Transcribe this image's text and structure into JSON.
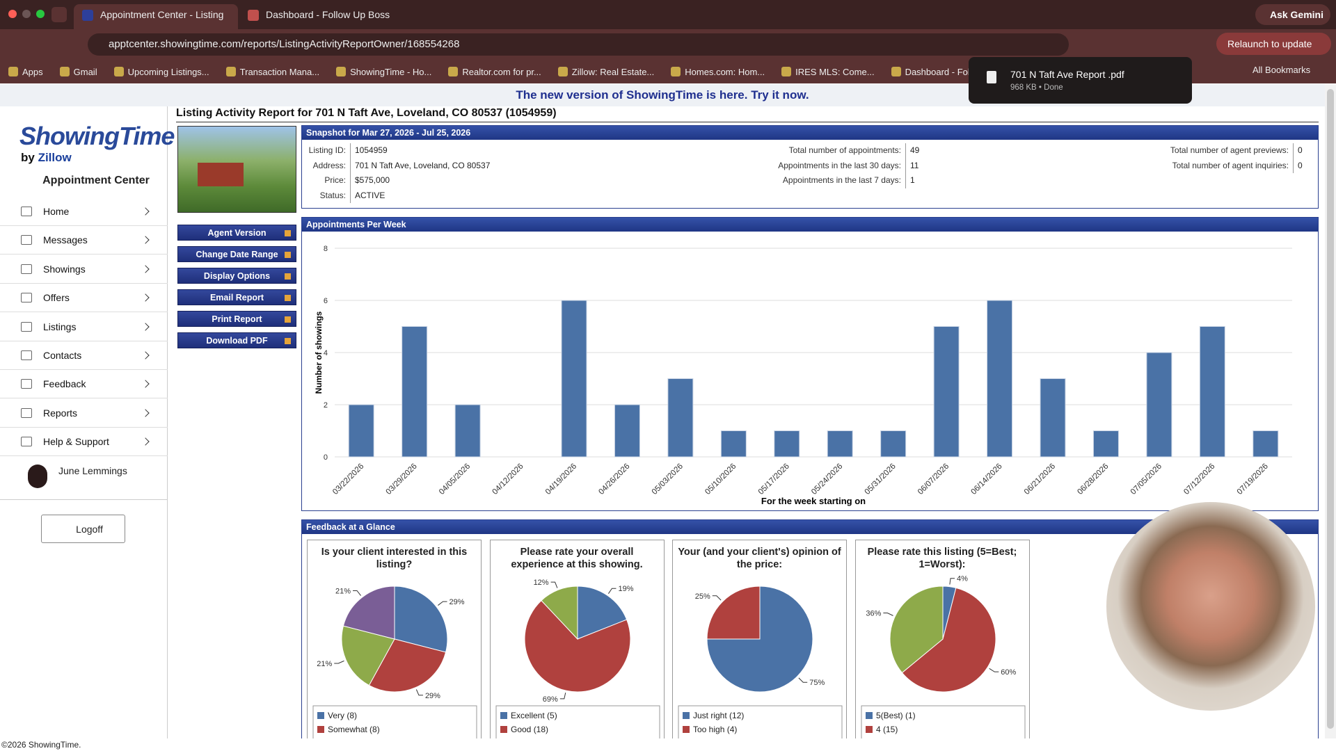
{
  "browser": {
    "tabs": [
      "Appointment Center - Listing",
      "Dashboard - Follow Up Boss"
    ],
    "url": "apptcenter.showingtime.com/reports/ListingActivityReportOwner/168554268",
    "ask": "Ask Gemini",
    "relaunch": "Relaunch to update",
    "bookmarks": [
      "Apps",
      "Gmail",
      "Upcoming Listings...",
      "Transaction Mana...",
      "ShowingTime - Ho...",
      "Realtor.com for pr...",
      "Zillow: Real Estate...",
      "Homes.com: Hom...",
      "IRES MLS: Come...",
      "Dashboard - Foll..."
    ],
    "all_bookmarks": "All Bookmarks",
    "download": {
      "file": "701 N Taft Ave Report .pdf",
      "status": "968 KB • Done"
    }
  },
  "banner": "The new version of ShowingTime is here. Try it now.",
  "sidebar": {
    "logo": "ShowingTime",
    "by": "by",
    "zillow": "Zillow",
    "app": "Appointment Center",
    "nav": [
      "Home",
      "Messages",
      "Showings",
      "Offers",
      "Listings",
      "Contacts",
      "Feedback",
      "Reports",
      "Help & Support"
    ],
    "user": "June Lemmings",
    "logoff": "Logoff"
  },
  "report": {
    "title": "Listing Activity Report for 701 N Taft Ave, Loveland, CO 80537 (1054959)",
    "buttons": [
      "Agent Version",
      "Change Date Range",
      "Display Options",
      "Email Report",
      "Print Report",
      "Download PDF"
    ],
    "snapshot": {
      "title": "Snapshot for Mar 27, 2026 - Jul 25, 2026",
      "columns": [
        [
          {
            "label": "Listing ID:",
            "value": "1054959"
          },
          {
            "label": "Address:",
            "value": "701 N Taft Ave, Loveland, CO 80537"
          },
          {
            "label": "Price:",
            "value": "$575,000"
          },
          {
            "label": "Status:",
            "value": "ACTIVE"
          }
        ],
        [
          {
            "label": "Total number of appointments:",
            "value": "49"
          },
          {
            "label": "Appointments in the last 30 days:",
            "value": "11"
          },
          {
            "label": "Appointments in the last 7 days:",
            "value": "1"
          }
        ],
        [
          {
            "label": "Total number of agent previews:",
            "value": "0"
          },
          {
            "label": "Total number of agent inquiries:",
            "value": "0"
          }
        ]
      ]
    },
    "feedback_title": "Feedback at a Glance"
  },
  "footer": "©2026 ShowingTime.",
  "chart_data": [
    {
      "type": "bar",
      "title": "Appointments Per Week",
      "y_label": "Number of showings",
      "x_label": "For the week starting on",
      "categories": [
        "03/22/2026",
        "03/29/2026",
        "04/05/2026",
        "04/12/2026",
        "04/19/2026",
        "04/26/2026",
        "05/03/2026",
        "05/10/2026",
        "05/17/2026",
        "05/24/2026",
        "05/31/2026",
        "06/07/2026",
        "06/14/2026",
        "06/21/2026",
        "06/28/2026",
        "07/05/2026",
        "07/12/2026",
        "07/19/2026"
      ],
      "values": [
        2,
        5,
        2,
        0,
        6,
        2,
        3,
        1,
        1,
        1,
        1,
        5,
        6,
        3,
        1,
        4,
        5,
        1
      ],
      "color": "#4a72a6",
      "ylim": [
        0,
        8
      ],
      "yticks": [
        0,
        2,
        4,
        6,
        8
      ],
      "grid": true
    },
    {
      "type": "pie",
      "title": "Is your client interested in this listing?",
      "categories": [
        "Very (8)",
        "Somewhat (8)",
        null,
        null
      ],
      "values": [
        29,
        29,
        21,
        21
      ],
      "value_labels": [
        "29%",
        "29%",
        "21%",
        "21%"
      ],
      "colors": [
        "#4a72a6",
        "#b0413e",
        "#8eaa4a",
        "#7a5e96"
      ]
    },
    {
      "type": "pie",
      "title": "Please rate your overall experience at this showing.",
      "categories": [
        "Excellent (5)",
        "Good (18)",
        null
      ],
      "values": [
        19,
        69,
        12
      ],
      "value_labels": [
        "19%",
        "69%",
        "12%"
      ],
      "colors": [
        "#4a72a6",
        "#b0413e",
        "#8eaa4a"
      ]
    },
    {
      "type": "pie",
      "title": "Your (and your client's) opinion of the price:",
      "categories": [
        "Just right (12)",
        "Too high (4)"
      ],
      "values": [
        75,
        25
      ],
      "value_labels": [
        "75%",
        "25%"
      ],
      "colors": [
        "#4a72a6",
        "#b0413e"
      ]
    },
    {
      "type": "pie",
      "title": "Please rate this listing (5=Best; 1=Worst):",
      "categories": [
        "5(Best) (1)",
        "4 (15)",
        null
      ],
      "values": [
        4,
        60,
        36
      ],
      "value_labels": [
        "4%",
        "60%",
        "36%"
      ],
      "colors": [
        "#4a72a6",
        "#b0413e",
        "#8eaa4a"
      ]
    }
  ]
}
